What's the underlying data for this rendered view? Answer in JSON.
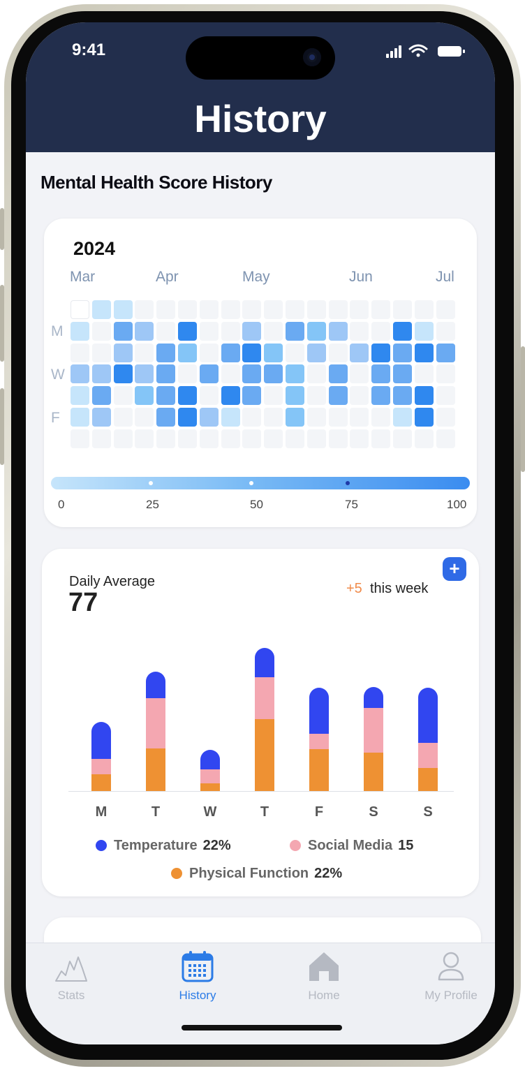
{
  "status_bar": {
    "time": "9:41"
  },
  "header": {
    "title": "History"
  },
  "section": {
    "title": "Mental Health Score History"
  },
  "heatmap": {
    "year": "2024",
    "months": [
      "Mar",
      "Apr",
      "May",
      "Jun",
      "Jul"
    ],
    "day_labels": [
      "M",
      "W",
      "F"
    ],
    "scale_labels": [
      "0",
      "25",
      "50",
      "75",
      "100"
    ],
    "colors": {
      "0": "#f3f5f8",
      "1": "#c6e5fb",
      "2": "#9ec7f6",
      "3": "#6aaaf2",
      "4": "#2f88ef",
      "5": "#ffffff",
      "6": "#84c5f7"
    },
    "grid": [
      [
        5,
        1,
        1,
        0,
        0,
        0,
        0,
        0,
        0,
        0,
        0,
        0,
        0,
        0,
        0,
        0,
        0,
        0
      ],
      [
        1,
        0,
        3,
        2,
        0,
        4,
        0,
        0,
        2,
        0,
        3,
        6,
        2,
        0,
        0,
        4,
        1,
        0
      ],
      [
        0,
        0,
        2,
        0,
        3,
        6,
        0,
        3,
        4,
        6,
        0,
        2,
        0,
        2,
        4,
        3,
        4,
        3
      ],
      [
        2,
        2,
        4,
        2,
        3,
        0,
        3,
        0,
        3,
        3,
        6,
        0,
        3,
        0,
        3,
        3,
        0,
        0
      ],
      [
        1,
        3,
        0,
        6,
        3,
        4,
        0,
        4,
        3,
        0,
        6,
        0,
        3,
        0,
        3,
        3,
        4,
        0
      ],
      [
        1,
        2,
        0,
        0,
        3,
        4,
        2,
        1,
        0,
        0,
        6,
        0,
        0,
        0,
        0,
        1,
        4,
        0
      ],
      [
        0,
        0,
        0,
        0,
        0,
        0,
        0,
        0,
        0,
        0,
        0,
        0,
        0,
        0,
        0,
        0,
        0,
        0
      ]
    ]
  },
  "daily": {
    "label": "Daily Average",
    "value": "77",
    "delta": "+5",
    "delta_text": "this week",
    "add_label": "+",
    "days": [
      "M",
      "T",
      "W",
      "T",
      "F",
      "S",
      "S"
    ],
    "legend": [
      {
        "name": "Temperature",
        "value": "22%",
        "color": "#3146f0"
      },
      {
        "name": "Social Media",
        "value": "15",
        "color": "#f4a7b1"
      },
      {
        "name": "Physical Function",
        "value": "22%",
        "color": "#ee9133"
      }
    ]
  },
  "chart_data": {
    "type": "bar",
    "stacked": true,
    "categories": [
      "M",
      "T",
      "W",
      "T",
      "F",
      "S",
      "S"
    ],
    "series": [
      {
        "name": "Physical Function",
        "color": "#ee9133",
        "values": [
          24,
          61,
          11,
          103,
          60,
          55,
          33
        ]
      },
      {
        "name": "Social Media",
        "color": "#f4a7b1",
        "values": [
          22,
          72,
          20,
          60,
          22,
          64,
          36
        ]
      },
      {
        "name": "Temperature",
        "color": "#3146f0",
        "values": [
          53,
          38,
          28,
          42,
          66,
          30,
          79
        ]
      }
    ]
  },
  "tabs": [
    {
      "label": "Stats",
      "active": false
    },
    {
      "label": "History",
      "active": true
    },
    {
      "label": "Home",
      "active": false
    },
    {
      "label": "My Profile",
      "active": false
    }
  ]
}
